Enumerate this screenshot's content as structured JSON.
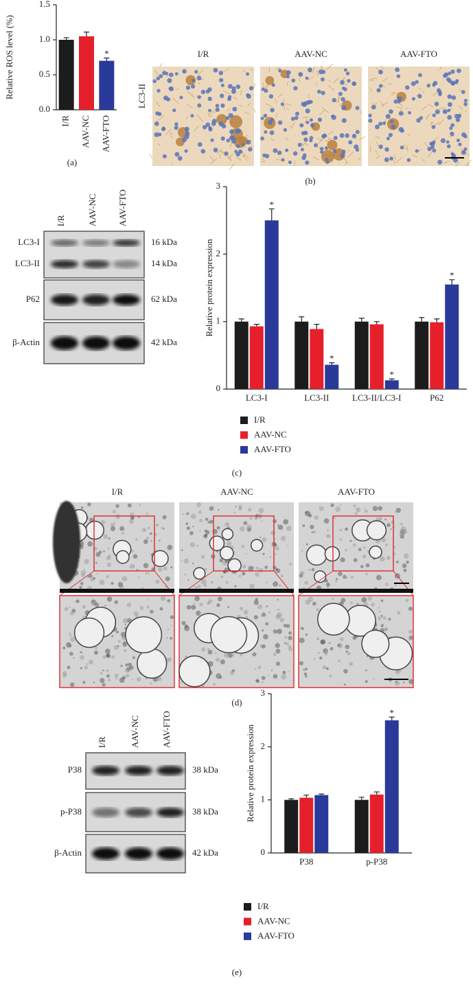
{
  "chart_data": [
    {
      "type": "bar",
      "ylabel": "Relative ROS level (%)",
      "categories": [
        "I/R",
        "AAV-NC",
        "AAV-FTO"
      ],
      "values": [
        1.0,
        1.05,
        0.7
      ],
      "errors": [
        0.03,
        0.06,
        0.04
      ],
      "colors": [
        "#1c1c1c",
        "#e5202b",
        "#2a3a9a"
      ],
      "ylim": [
        0,
        1.5
      ],
      "yticks": [
        {
          "value": 0,
          "label": "0.0"
        },
        {
          "value": 0.5,
          "label": "0.5"
        },
        {
          "value": 1,
          "label": "1.0"
        },
        {
          "value": 1.5,
          "label": "1.5"
        }
      ],
      "annotations": [
        {
          "category": "AAV-FTO",
          "text": "*"
        }
      ]
    },
    {
      "type": "bar",
      "ylabel": "Relative protein expression",
      "categories": [
        "LC3-I",
        "LC3-II",
        "LC3-II/LC3-I",
        "P62"
      ],
      "series": [
        {
          "name": "I/R",
          "color": "#1c1c1c",
          "values": [
            1.0,
            1.0,
            1.0,
            1.0
          ],
          "errors": [
            0.04,
            0.07,
            0.05,
            0.06
          ]
        },
        {
          "name": "AAV-NC",
          "color": "#e5202b",
          "values": [
            0.93,
            0.89,
            0.96,
            0.99
          ],
          "errors": [
            0.03,
            0.07,
            0.04,
            0.05
          ]
        },
        {
          "name": "AAV-FTO",
          "color": "#2a3a9a",
          "values": [
            2.5,
            0.36,
            0.13,
            1.55
          ],
          "errors": [
            0.17,
            0.03,
            0.02,
            0.07
          ]
        }
      ],
      "ylim": [
        0,
        3
      ],
      "yticks": [
        0,
        1,
        2,
        3
      ],
      "annotations": [
        {
          "category": "LC3-I",
          "series": "AAV-FTO",
          "text": "*"
        },
        {
          "category": "LC3-II",
          "series": "AAV-FTO",
          "text": "*"
        },
        {
          "category": "LC3-II/LC3-I",
          "series": "AAV-FTO",
          "text": "*"
        },
        {
          "category": "P62",
          "series": "AAV-FTO",
          "text": "*"
        }
      ]
    },
    {
      "type": "bar",
      "ylabel": "Relative protein expression",
      "categories": [
        "P38",
        "p-P38"
      ],
      "series": [
        {
          "name": "I/R",
          "color": "#1c1c1c",
          "values": [
            1.0,
            1.0
          ],
          "errors": [
            0.02,
            0.05
          ]
        },
        {
          "name": "AAV-NC",
          "color": "#e5202b",
          "values": [
            1.04,
            1.1
          ],
          "errors": [
            0.05,
            0.05
          ]
        },
        {
          "name": "AAV-FTO",
          "color": "#2a3a9a",
          "values": [
            1.09,
            2.5
          ],
          "errors": [
            0.02,
            0.06
          ]
        }
      ],
      "ylim": [
        0,
        3
      ],
      "yticks": [
        0,
        1,
        2,
        3
      ],
      "annotations": [
        {
          "category": "p-P38",
          "series": "AAV-FTO",
          "text": "*"
        }
      ]
    }
  ],
  "panel_labels": [
    "(a)",
    "(b)",
    "(c)",
    "(d)",
    "(e)"
  ],
  "ihc": {
    "row_label": "LC3-II",
    "columns": [
      "I/R",
      "AAV-NC",
      "AAV-FTO"
    ]
  },
  "tem": {
    "columns": [
      "I/R",
      "AAV-NC",
      "AAV-FTO"
    ]
  },
  "blot_c": {
    "lanes": [
      "I/R",
      "AAV-NC",
      "AAV-FTO"
    ],
    "rows": [
      {
        "label": "LC3-I",
        "size": "16 kDa"
      },
      {
        "label": "LC3-II",
        "size": "14 kDa"
      },
      {
        "label": "P62",
        "size": "62 kDa"
      },
      {
        "label": "β-Actin",
        "size": "42 kDa"
      }
    ]
  },
  "blot_e": {
    "lanes": [
      "I/R",
      "AAV-NC",
      "AAV-FTO"
    ],
    "rows": [
      {
        "label": "P38",
        "size": "38 kDa"
      },
      {
        "label": "p-P38",
        "size": "38 kDa"
      },
      {
        "label": "β-Actin",
        "size": "42 kDa"
      }
    ]
  }
}
